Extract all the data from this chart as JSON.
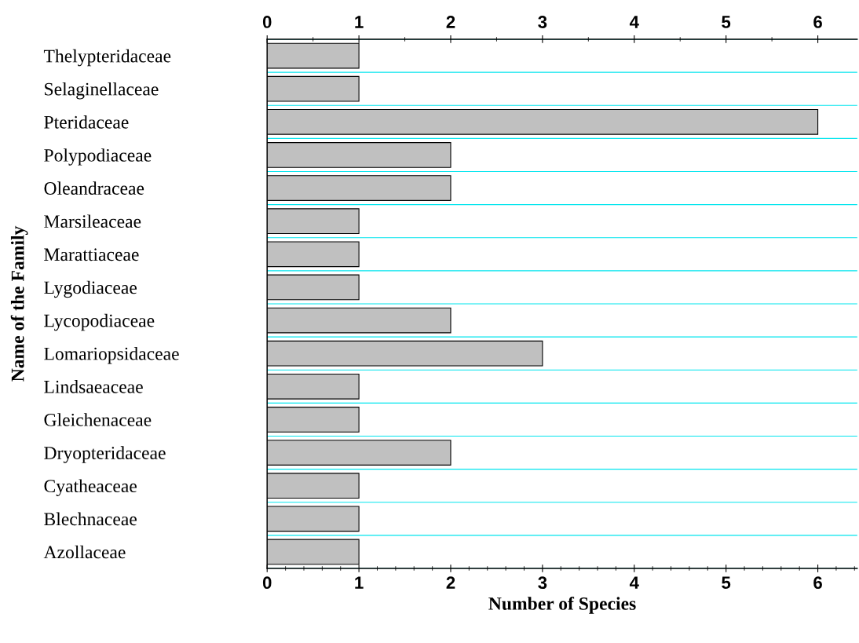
{
  "chart_data": {
    "type": "bar",
    "orientation": "horizontal",
    "xlabel": "Number of Species",
    "ylabel": "Name of the Family",
    "categories": [
      "Thelypteridaceae",
      "Selaginellaceae",
      "Pteridaceae",
      "Polypodiaceae",
      "Oleandraceae",
      "Marsileaceae",
      "Marattiaceae",
      "Lygodiaceae",
      "Lycopodiaceae",
      "Lomariopsidaceae",
      "Lindsaeaceae",
      "Gleichenaceae",
      "Dryopteridaceae",
      "Cyatheaceae",
      "Blechnaceae",
      "Azollaceae"
    ],
    "values": [
      1,
      1,
      6,
      2,
      2,
      1,
      1,
      1,
      2,
      3,
      1,
      1,
      2,
      1,
      1,
      1
    ],
    "color": "#c0c0c0",
    "xlim": [
      0,
      6.43
    ],
    "xticks": [
      0,
      1,
      2,
      3,
      4,
      5,
      6
    ],
    "x2lim": [
      0,
      6.43
    ],
    "x2ticks": [
      0,
      1,
      2,
      3,
      4,
      5,
      6
    ],
    "grid": "y",
    "legend": false
  }
}
